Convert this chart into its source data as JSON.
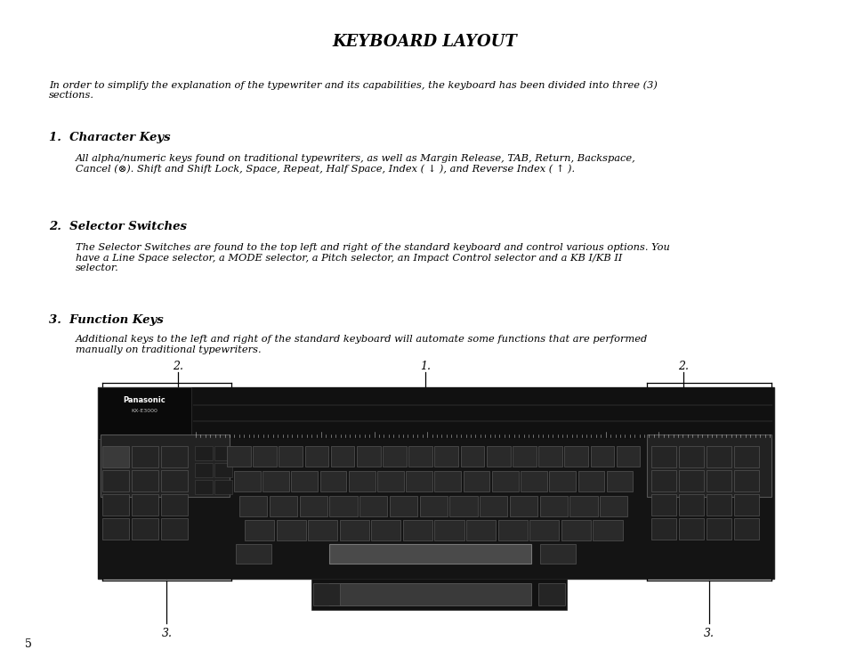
{
  "title": "KEYBOARD LAYOUT",
  "page_number": "5",
  "intro_text": "In order to simplify the explanation of the typewriter and its capabilities, the keyboard has been divided into three (3)\nsections.",
  "sections": [
    {
      "number": "1.",
      "heading": "Character Keys",
      "body": "All alpha/numeric keys found on traditional typewriters, as well as Margin Release, TAB, Return, Backspace,\nCancel (⊗). Shift and Shift Lock, Space, Repeat, Half Space, Index ( ↓ ), and Reverse Index ( ↑ )."
    },
    {
      "number": "2.",
      "heading": "Selector Switches",
      "body": "The Selector Switches are found to the top left and right of the standard keyboard and control various options. You\nhave a Line Space selector, a MODE selector, a Pitch selector, an Impact Control selector and a KB I/KB II\nselector."
    },
    {
      "number": "3.",
      "heading": "Function Keys",
      "body": "Additional keys to the left and right of the standard keyboard will automate some functions that are performed\nmanually on traditional typewriters."
    }
  ],
  "bg_color": "#ffffff",
  "text_color": "#000000"
}
